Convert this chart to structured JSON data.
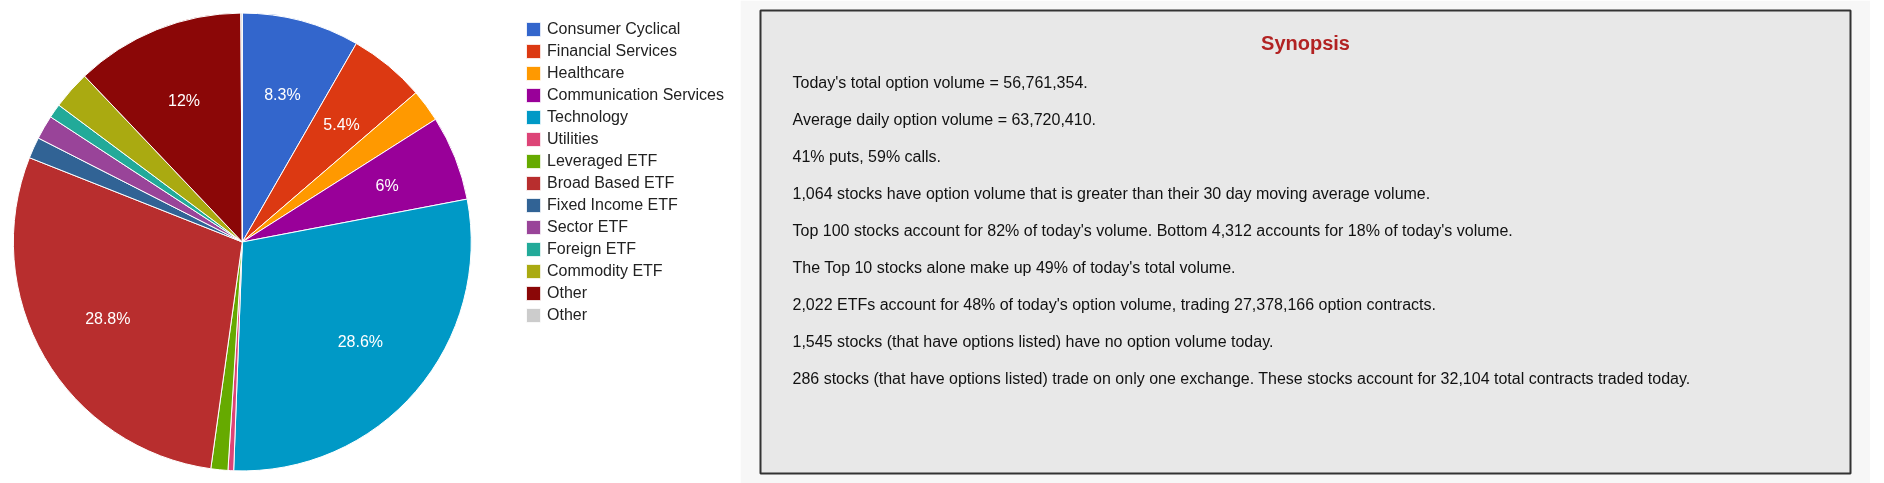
{
  "chart_data": [
    {
      "type": "pie",
      "legend": "top right",
      "categories": [
        "Consumer Cyclical",
        "Financial Services",
        "Healthcare",
        "Communication Services",
        "Technology",
        "Utilities",
        "Leveraged ETF",
        "Broad Based ETF",
        "Fixed Income ETF",
        "Sector ETF",
        "Foreign ETF",
        "Commodity ETF",
        "Other",
        "Other"
      ],
      "values": [
        8.3,
        5.4,
        2.3,
        6,
        28.6,
        0.4,
        1.2,
        28.8,
        1.5,
        1.7,
        1.0,
        2.7,
        12,
        0.1
      ],
      "colors": [
        "#3366cc",
        "#dc3912",
        "#ff9900",
        "#990099",
        "#0099c6",
        "#dd4477",
        "#66aa00",
        "#b82e2e",
        "#316395",
        "#994499",
        "#22aa99",
        "#aaaa11",
        "#8b0707",
        "#cccccc"
      ],
      "value_labels": [
        "8.3%",
        "5.4%",
        null,
        "6%",
        "28.6%",
        null,
        null,
        "28.8%",
        null,
        null,
        null,
        null,
        "12%",
        null
      ]
    },
    {
      "type": "other",
      "title": "Synopsis",
      "annotations": [
        "Today's total option volume = 56,761,354.",
        "Average daily option volume = 63,720,410.",
        "41% puts, 59% calls.",
        "1,064 stocks have option volume that is greater than their 30 day moving average volume.",
        "Top 100 stocks account for 82% of today's volume. Bottom 4,312 accounts for 18% of today's volume.",
        "The Top 10 stocks alone make up 49% of today's total volume.",
        "2,022 ETFs account for 48% of today's option volume, trading 27,378,166 option contracts.",
        "1,545 stocks (that have options listed) have no option volume today.",
        "286 stocks (that have options listed) trade on only one exchange. These stocks account for 32,104 total contracts traded today."
      ]
    }
  ]
}
